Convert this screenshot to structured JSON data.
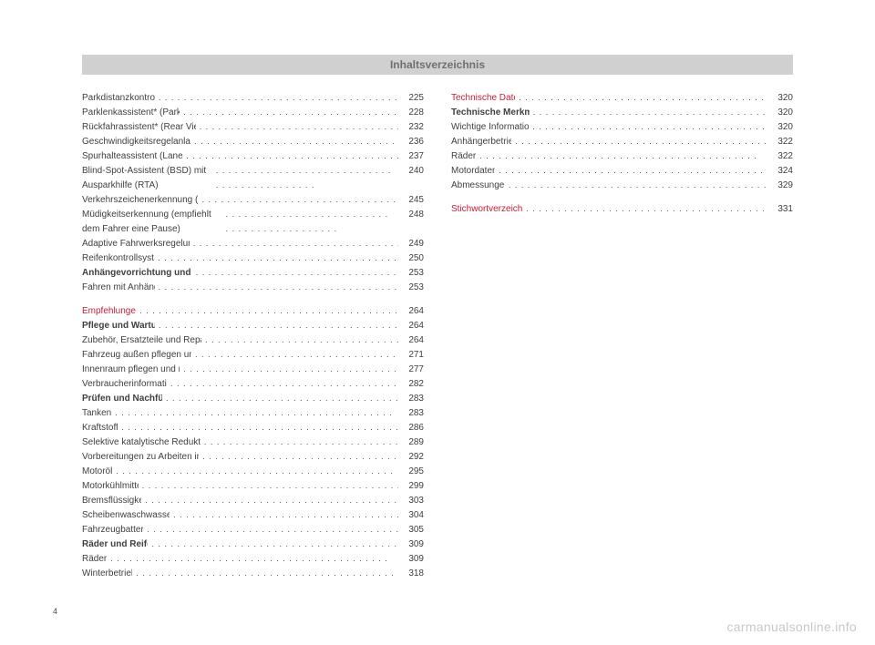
{
  "header": {
    "title": "Inhaltsverzeichnis"
  },
  "footer": {
    "pageNumber": "4",
    "watermark": "carmanualsonline.info"
  },
  "colors": {
    "headerBg": "#d0d0d0",
    "headerText": "#707070",
    "bodyText": "#404040",
    "sectionText": "#c41e3a",
    "watermark": "#c8c8c8",
    "pageBg": "#ffffff"
  },
  "typography": {
    "headerFontSize": 12,
    "bodyFontSize": 10,
    "pageNumFontSize": 9,
    "watermarkFontSize": 14
  },
  "left": [
    {
      "label": "Parkdistanzkontrolle*",
      "page": "225",
      "style": "normal"
    },
    {
      "label": "Parklenkassistent* (Park Assist)",
      "page": "228",
      "style": "normal"
    },
    {
      "label": "Rückfahrassistent* (Rear View Camera)",
      "page": "232",
      "style": "normal"
    },
    {
      "label": "Geschwindigkeitsregelanlage* (GRA)",
      "page": "236",
      "style": "normal"
    },
    {
      "label": "Spurhalteassistent (Lane Assist)*",
      "page": "237",
      "style": "normal"
    },
    {
      "label": "Blind-Spot-Assistent (BSD) mit Ausparkhilfe (RTA)",
      "page": "240",
      "style": "normal",
      "multiline": true
    },
    {
      "label": "Verkehrszeichenerkennung (Sign Assist)*",
      "page": "245",
      "style": "normal"
    },
    {
      "label": "Müdigkeitserkennung (empfiehlt dem Fahrer eine Pause)",
      "page": "248",
      "style": "normal",
      "multiline": true
    },
    {
      "label": "Adaptive Fahrwerksregelung (DCC)*",
      "page": "249",
      "style": "normal"
    },
    {
      "label": "Reifenkontrollsystem",
      "page": "250",
      "style": "normal"
    },
    {
      "label": "Anhängevorrichtung und Anhänger",
      "page": "253",
      "style": "bold"
    },
    {
      "label": "Fahren mit Anhänger",
      "page": "253",
      "style": "normal"
    },
    {
      "label": "Empfehlungen",
      "page": "264",
      "style": "section"
    },
    {
      "label": "Pflege und Wartung",
      "page": "264",
      "style": "bold"
    },
    {
      "label": "Zubehör, Ersatzteile und Reparaturarbeiten",
      "page": "264",
      "style": "normal"
    },
    {
      "label": "Fahrzeug außen pflegen und reinigen",
      "page": "271",
      "style": "normal"
    },
    {
      "label": "Innenraum pflegen und reinigen",
      "page": "277",
      "style": "normal"
    },
    {
      "label": "Verbraucherinformationen",
      "page": "282",
      "style": "normal"
    },
    {
      "label": "Prüfen und Nachfüllen",
      "page": "283",
      "style": "bold"
    },
    {
      "label": "Tanken",
      "page": "283",
      "style": "normal"
    },
    {
      "label": "Kraftstoff",
      "page": "286",
      "style": "normal"
    },
    {
      "label": "Selektive katalytische Reduktion* (AdBlue)",
      "page": "289",
      "style": "normal"
    },
    {
      "label": "Vorbereitungen zu Arbeiten im Motorraum",
      "page": "292",
      "style": "normal"
    },
    {
      "label": "Motoröl",
      "page": "295",
      "style": "normal"
    },
    {
      "label": "Motorkühlmittel",
      "page": "299",
      "style": "normal"
    },
    {
      "label": "Bremsflüssigkeit",
      "page": "303",
      "style": "normal"
    },
    {
      "label": "Scheibenwaschwassertank",
      "page": "304",
      "style": "normal"
    },
    {
      "label": "Fahrzeugbatterie",
      "page": "305",
      "style": "normal"
    },
    {
      "label": "Räder und Reifen",
      "page": "309",
      "style": "bold"
    },
    {
      "label": "Räder",
      "page": "309",
      "style": "normal"
    },
    {
      "label": "Winterbetrieb",
      "page": "318",
      "style": "normal"
    }
  ],
  "right": [
    {
      "label": "Technische Daten",
      "page": "320",
      "style": "section-first"
    },
    {
      "label": "Technische Merkmale",
      "page": "320",
      "style": "bold"
    },
    {
      "label": "Wichtige Informationen",
      "page": "320",
      "style": "normal"
    },
    {
      "label": "Anhängerbetrieb",
      "page": "322",
      "style": "normal"
    },
    {
      "label": "Räder",
      "page": "322",
      "style": "normal"
    },
    {
      "label": "Motordaten",
      "page": "324",
      "style": "normal"
    },
    {
      "label": "Abmessungen",
      "page": "329",
      "style": "normal"
    },
    {
      "label": "Stichwortverzeichnis",
      "page": "331",
      "style": "section"
    }
  ]
}
